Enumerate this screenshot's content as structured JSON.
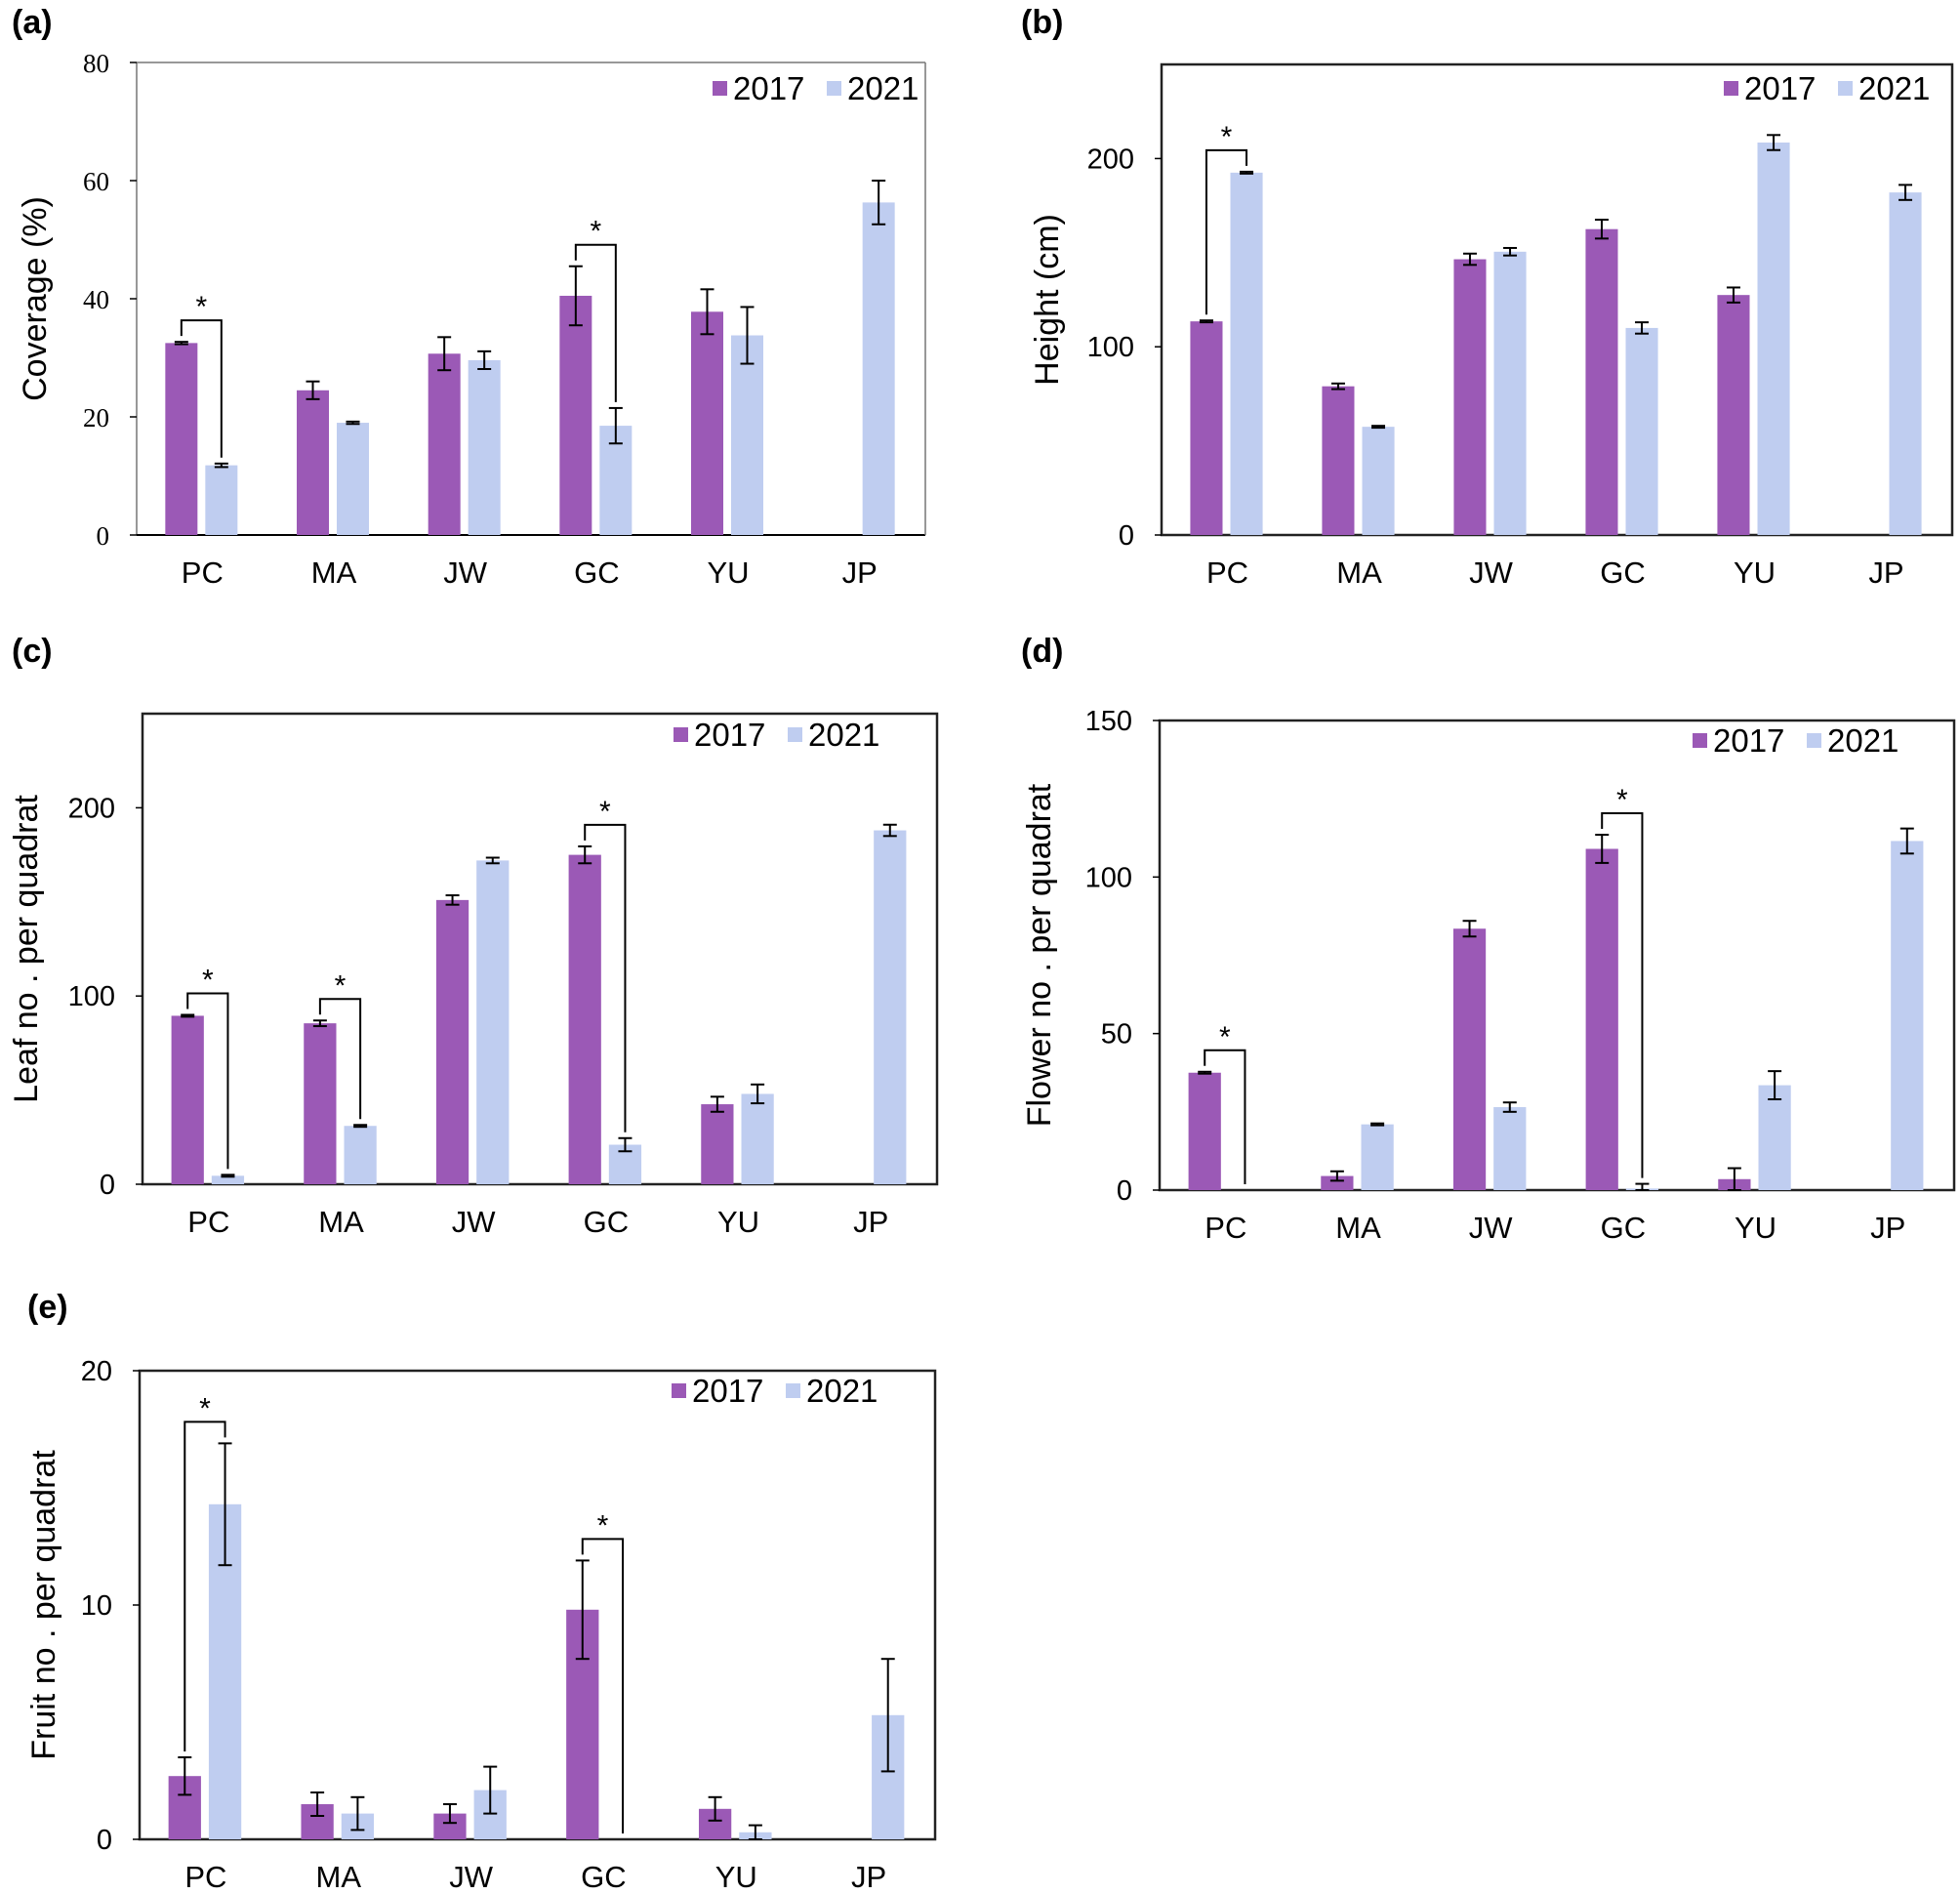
{
  "colors": {
    "2017": "#9b59b6",
    "2021": "#bfcdf0",
    "axis": "#000000",
    "frame": "#222222"
  },
  "chart_data": [
    {
      "panel": "(a)",
      "type": "bar",
      "ylabel": "Coverage (%)",
      "ylim": [
        0,
        80
      ],
      "yticks": [
        "0",
        "20",
        "40",
        "60",
        "80"
      ],
      "categories": [
        "PC",
        "MA",
        "JW",
        "GC",
        "YU",
        "JP"
      ],
      "legend": [
        "2017",
        "2021"
      ],
      "series": [
        {
          "name": "2017",
          "values": [
            32.5,
            24.5,
            30.7,
            40.5,
            37.8,
            null
          ],
          "errors": [
            0.2,
            1.5,
            2.8,
            5.0,
            3.8,
            null
          ]
        },
        {
          "name": "2021",
          "values": [
            11.8,
            19.0,
            29.6,
            18.5,
            33.8,
            56.3
          ],
          "errors": [
            0.3,
            0.2,
            1.5,
            3.0,
            4.8,
            3.7
          ]
        }
      ],
      "significance": [
        {
          "category": "PC",
          "label": "*"
        },
        {
          "category": "GC",
          "label": "*"
        }
      ]
    },
    {
      "panel": "(b)",
      "type": "bar",
      "ylabel": "Height (cm)",
      "ylim": [
        0,
        250
      ],
      "yticks": [
        "0",
        "100",
        "200"
      ],
      "categories": [
        "PC",
        "MA",
        "JW",
        "GC",
        "YU",
        "JP"
      ],
      "legend": [
        "2017",
        "2021"
      ],
      "series": [
        {
          "name": "2017",
          "values": [
            113.5,
            79.0,
            146.5,
            162.5,
            127.5,
            null
          ],
          "errors": [
            0.5,
            1.5,
            3.0,
            5.0,
            4.0,
            null
          ]
        },
        {
          "name": "2021",
          "values": [
            192.5,
            57.5,
            150.5,
            110.0,
            208.5,
            182.0
          ],
          "errors": [
            0.5,
            0.5,
            2.0,
            3.0,
            4.0,
            4.0
          ]
        }
      ],
      "significance": [
        {
          "category": "PC",
          "label": "*"
        }
      ]
    },
    {
      "panel": "(c)",
      "type": "bar",
      "ylabel": "Leaf no . per quadrat",
      "ylim": [
        0,
        250
      ],
      "yticks": [
        "0",
        "100",
        "200"
      ],
      "categories": [
        "PC",
        "MA",
        "JW",
        "GC",
        "YU",
        "JP"
      ],
      "legend": [
        "2017",
        "2021"
      ],
      "series": [
        {
          "name": "2017",
          "values": [
            89.5,
            85.5,
            151.0,
            175.0,
            42.5,
            null
          ],
          "errors": [
            0.5,
            1.5,
            2.5,
            4.5,
            4.0,
            null
          ]
        },
        {
          "name": "2021",
          "values": [
            4.5,
            31.0,
            172.0,
            21.0,
            48.0,
            188.0
          ],
          "errors": [
            0.5,
            0.5,
            1.5,
            3.5,
            5.0,
            3.0
          ]
        }
      ],
      "significance": [
        {
          "category": "PC",
          "label": "*"
        },
        {
          "category": "MA",
          "label": "*"
        },
        {
          "category": "GC",
          "label": "*"
        }
      ]
    },
    {
      "panel": "(d)",
      "type": "bar",
      "ylabel": "Flower no . per quadrat",
      "ylim": [
        0,
        150
      ],
      "yticks": [
        "0",
        "50",
        "100",
        "150"
      ],
      "categories": [
        "PC",
        "MA",
        "JW",
        "GC",
        "YU",
        "JP"
      ],
      "legend": [
        "2017",
        "2021"
      ],
      "series": [
        {
          "name": "2017",
          "values": [
            37.5,
            4.5,
            83.5,
            109.0,
            3.5,
            null
          ],
          "errors": [
            0.3,
            1.5,
            2.5,
            4.5,
            3.5,
            null
          ]
        },
        {
          "name": "2021",
          "values": [
            0,
            21.0,
            26.5,
            0.5,
            33.5,
            111.5
          ],
          "errors": [
            0,
            0.3,
            1.5,
            1.5,
            4.5,
            4.0
          ]
        }
      ],
      "significance": [
        {
          "category": "PC",
          "label": "*"
        },
        {
          "category": "GC",
          "label": "*"
        }
      ]
    },
    {
      "panel": "(e)",
      "type": "bar",
      "ylabel": "Fruit no . per quadrat",
      "ylim": [
        0,
        20
      ],
      "yticks": [
        "0",
        "10",
        "20"
      ],
      "categories": [
        "PC",
        "MA",
        "JW",
        "GC",
        "YU",
        "JP"
      ],
      "legend": [
        "2017",
        "2021"
      ],
      "series": [
        {
          "name": "2017",
          "values": [
            2.7,
            1.5,
            1.1,
            9.8,
            1.3,
            null
          ],
          "errors": [
            0.8,
            0.5,
            0.4,
            2.1,
            0.5,
            null
          ]
        },
        {
          "name": "2021",
          "values": [
            14.3,
            1.1,
            2.1,
            0,
            0.3,
            5.3
          ],
          "errors": [
            2.6,
            0.7,
            1.0,
            0,
            0.3,
            2.4
          ]
        }
      ],
      "significance": [
        {
          "category": "PC",
          "label": "*"
        },
        {
          "category": "GC",
          "label": "*"
        }
      ]
    }
  ]
}
